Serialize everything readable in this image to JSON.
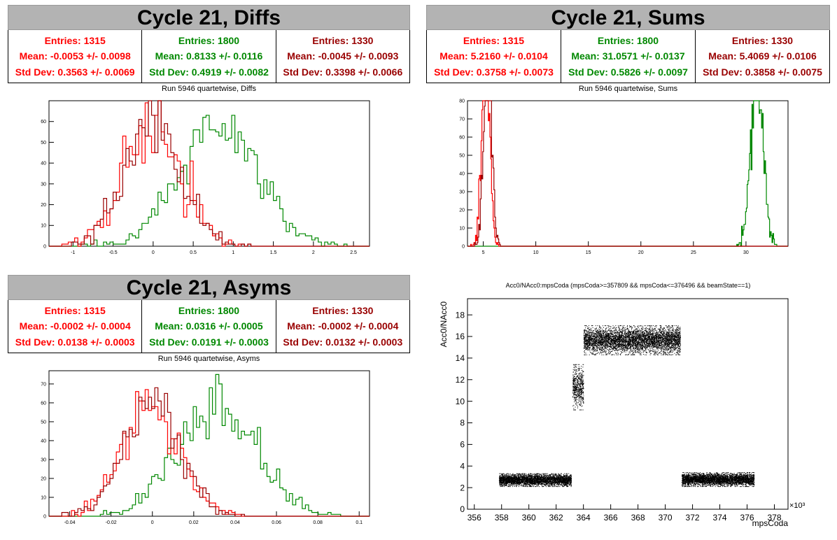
{
  "panels": {
    "diffs": {
      "title": "Cycle 21, Diffs",
      "subtitle": "Run 5946 quartetwise, Diffs",
      "stats": [
        {
          "entries": "Entries: 1315",
          "mean": "Mean: -0.0053 +/- 0.0098",
          "std": "Std Dev: 0.3563 +/- 0.0069",
          "color": "#ff0000"
        },
        {
          "entries": "Entries: 1800",
          "mean": "Mean: 0.8133 +/- 0.0116",
          "std": "Std Dev: 0.4919 +/- 0.0082",
          "color": "#008800"
        },
        {
          "entries": "Entries: 1330",
          "mean": "Mean: -0.0045 +/- 0.0093",
          "std": "Std Dev: 0.3398 +/- 0.0066",
          "color": "#990000"
        }
      ]
    },
    "sums": {
      "title": "Cycle 21, Sums",
      "subtitle": "Run 5946 quartetwise, Sums",
      "stats": [
        {
          "entries": "Entries: 1315",
          "mean": "Mean: 5.2160 +/- 0.0104",
          "std": "Std Dev: 0.3758 +/- 0.0073",
          "color": "#ff0000"
        },
        {
          "entries": "Entries: 1800",
          "mean": "Mean: 31.0571 +/- 0.0137",
          "std": "Std Dev: 0.5826 +/- 0.0097",
          "color": "#008800"
        },
        {
          "entries": "Entries: 1330",
          "mean": "Mean: 5.4069 +/- 0.0106",
          "std": "Std Dev: 0.3858 +/- 0.0075",
          "color": "#990000"
        }
      ]
    },
    "asyms": {
      "title": "Cycle 21, Asyms",
      "subtitle": "Run 5946 quartetwise, Asyms",
      "stats": [
        {
          "entries": "Entries: 1315",
          "mean": "Mean: -0.0002 +/- 0.0004",
          "std": "Std Dev: 0.0138 +/- 0.0003",
          "color": "#ff0000"
        },
        {
          "entries": "Entries: 1800",
          "mean": "Mean: 0.0316 +/- 0.0005",
          "std": "Std Dev: 0.0191 +/- 0.0003",
          "color": "#008800"
        },
        {
          "entries": "Entries: 1330",
          "mean": "Mean: -0.0002 +/- 0.0004",
          "std": "Std Dev: 0.0132 +/- 0.0003",
          "color": "#990000"
        }
      ]
    },
    "scatter": {
      "title": "Acc0/NAcc0:mpsCoda (mpsCoda>=357809 && mpsCoda<=376496 && beamState==1)"
    }
  },
  "chart_data": [
    {
      "type": "histogram",
      "xlim": [
        -1.3,
        2.7
      ],
      "ylim": [
        0,
        70
      ],
      "xticks": [
        -1,
        -0.5,
        0,
        0.5,
        1,
        1.5,
        2,
        2.5
      ],
      "yticks": [
        0,
        10,
        20,
        30,
        40,
        50,
        60
      ],
      "series": [
        {
          "mean": 0.8133,
          "std": 0.4919,
          "entries": 1800,
          "color": "#008800"
        },
        {
          "mean": -0.0053,
          "std": 0.3563,
          "entries": 1315,
          "color": "#ff0000"
        },
        {
          "mean": -0.0045,
          "std": 0.3398,
          "entries": 1330,
          "color": "#990000"
        }
      ]
    },
    {
      "type": "histogram",
      "xlim": [
        3.5,
        34
      ],
      "ylim": [
        0,
        80
      ],
      "xticks": [
        5,
        10,
        15,
        20,
        25,
        30
      ],
      "yticks": [
        0,
        10,
        20,
        30,
        40,
        50,
        60,
        70,
        80
      ],
      "series": [
        {
          "mean": 31.0571,
          "std": 0.5826,
          "entries": 1800,
          "color": "#008800"
        },
        {
          "mean": 5.216,
          "std": 0.3758,
          "entries": 1315,
          "color": "#ff0000"
        },
        {
          "mean": 5.4069,
          "std": 0.3858,
          "entries": 1330,
          "color": "#990000"
        }
      ]
    },
    {
      "type": "histogram",
      "xlim": [
        -0.05,
        0.105
      ],
      "ylim": [
        0,
        77
      ],
      "xticks": [
        -0.04,
        -0.02,
        0,
        0.02,
        0.04,
        0.06,
        0.08,
        0.1
      ],
      "yticks": [
        0,
        10,
        20,
        30,
        40,
        50,
        60,
        70
      ],
      "series": [
        {
          "mean": 0.0316,
          "std": 0.0191,
          "entries": 1800,
          "color": "#008800"
        },
        {
          "mean": -0.0002,
          "std": 0.0138,
          "entries": 1315,
          "color": "#ff0000"
        },
        {
          "mean": -0.0002,
          "std": 0.0132,
          "entries": 1330,
          "color": "#990000"
        }
      ]
    },
    {
      "type": "scatter",
      "xlabel": "mpsCoda",
      "ylabel": "Acc0/NAcc0",
      "x_multiplier": "×10³",
      "xlim": [
        355.5,
        379
      ],
      "ylim": [
        0,
        19.5
      ],
      "xticks": [
        356,
        358,
        360,
        362,
        364,
        366,
        368,
        370,
        372,
        374,
        376,
        378
      ],
      "yticks": [
        0,
        2,
        4,
        6,
        8,
        10,
        12,
        14,
        16,
        18
      ],
      "clusters": [
        {
          "x": [
            357.8,
            363.1
          ],
          "y": [
            2.1,
            3.3
          ]
        },
        {
          "x": [
            363.2,
            364.0
          ],
          "y": [
            9.2,
            13.4
          ]
        },
        {
          "x": [
            364.0,
            371.1
          ],
          "y": [
            14.3,
            17.0
          ]
        },
        {
          "x": [
            371.2,
            376.5
          ],
          "y": [
            2.1,
            3.4
          ]
        }
      ],
      "color": "#000000"
    }
  ]
}
